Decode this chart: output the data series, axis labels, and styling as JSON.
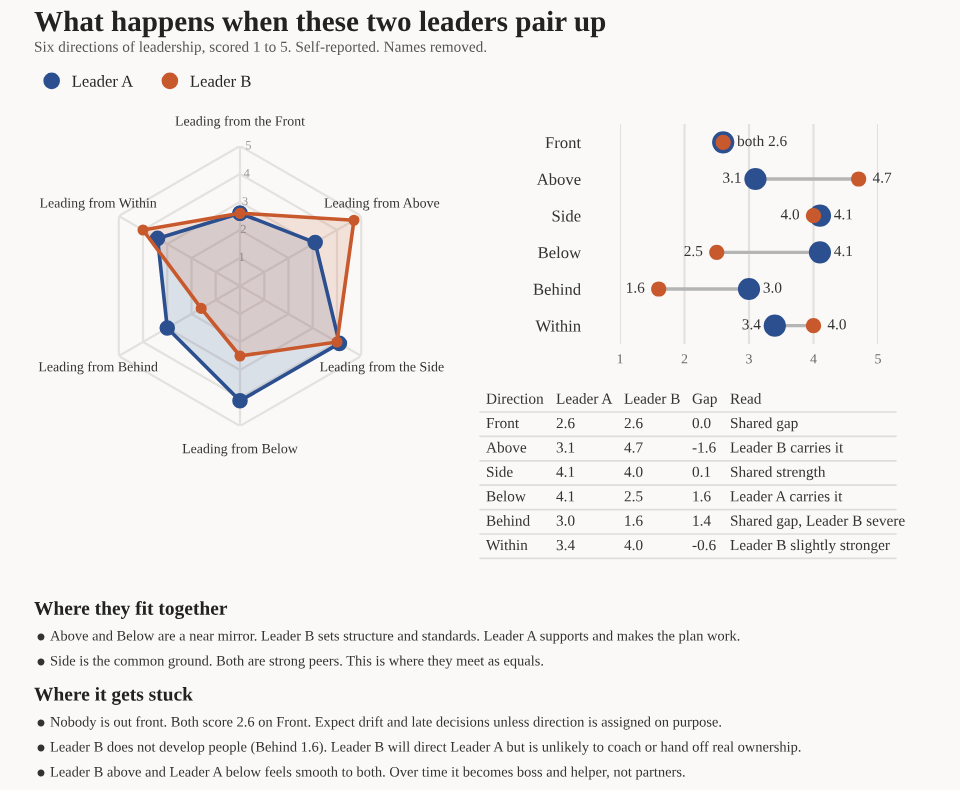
{
  "chart_data": [
    {
      "type": "radar",
      "title": "What happens when these two leaders pair up",
      "subtitle": "Six directions of leadership, scored 1 to 5. Self-reported. Names removed.",
      "categories": [
        "Leading from the Front",
        "Leading from Above",
        "Leading from the Side",
        "Leading from Below",
        "Leading from Behind",
        "Leading from Within"
      ],
      "series": [
        {
          "name": "Leader A",
          "color": "#2b4f8f",
          "values": [
            2.6,
            3.1,
            4.1,
            4.1,
            3.0,
            3.4
          ]
        },
        {
          "name": "Leader B",
          "color": "#c8592d",
          "values": [
            2.6,
            4.7,
            4.0,
            2.5,
            1.6,
            4.0
          ]
        }
      ],
      "ylim": [
        0,
        5
      ],
      "yticks": [
        1,
        2,
        3,
        4,
        5
      ],
      "legend": "top left",
      "marker": "circle"
    },
    {
      "type": "scatter",
      "orientation": "horizontal",
      "categories": [
        "Front",
        "Above",
        "Side",
        "Below",
        "Behind",
        "Within"
      ],
      "series": [
        {
          "color": "#2b4f8f",
          "values": [
            2.6,
            3.1,
            4.1,
            4.1,
            3.0,
            3.4
          ],
          "value_labels": [
            null,
            "3.1",
            "4.1",
            "4.1",
            "3.0",
            "3.4"
          ]
        },
        {
          "color": "#c8592d",
          "values": [
            2.6,
            4.7,
            4.0,
            2.5,
            1.6,
            4.0
          ],
          "value_labels": [
            "both 2.6",
            "4.7",
            "4.0",
            "2.5",
            "1.6",
            "4.0"
          ]
        }
      ],
      "xlim": [
        1,
        5
      ],
      "xticks": [
        1,
        2,
        3,
        4,
        5
      ],
      "grid": "x",
      "marker": "circle"
    },
    {
      "type": "other",
      "categories": [
        "Direction",
        "Leader A",
        "Leader B",
        "Gap",
        "Read"
      ],
      "annotations": [
        "Front",
        "2.6",
        "2.6",
        "0.0",
        "Shared gap",
        "Above",
        "3.1",
        "4.7",
        "-1.6",
        "Leader B carries it",
        "Side",
        "4.1",
        "4.0",
        "0.1",
        "Shared strength",
        "Below",
        "4.1",
        "2.5",
        "1.6",
        "Leader A carries it",
        "Behind",
        "3.0",
        "1.6",
        "1.4",
        "Shared gap, Leader B severe",
        "Within",
        "3.4",
        "4.0",
        "-0.6",
        "Leader B slightly stronger"
      ]
    },
    {
      "type": "other",
      "title": "Where they fit together",
      "annotations": [
        "Above and Below are a near mirror. Leader B sets structure and standards. Leader A supports and makes the plan work.",
        "Side is the common ground. Both are strong peers. This is where they meet as equals."
      ]
    },
    {
      "type": "other",
      "title": "Where it gets stuck",
      "annotations": [
        "Nobody is out front. Both score 2.6 on Front. Expect drift and late decisions unless direction is assigned on purpose.",
        "Leader B does not develop people (Behind 1.6). Leader B will direct Leader A but is unlikely to coach or hand off real ownership.",
        "Leader B above and Leader A below feels smooth to both. Over time it becomes boss and helper, not partners."
      ]
    }
  ]
}
